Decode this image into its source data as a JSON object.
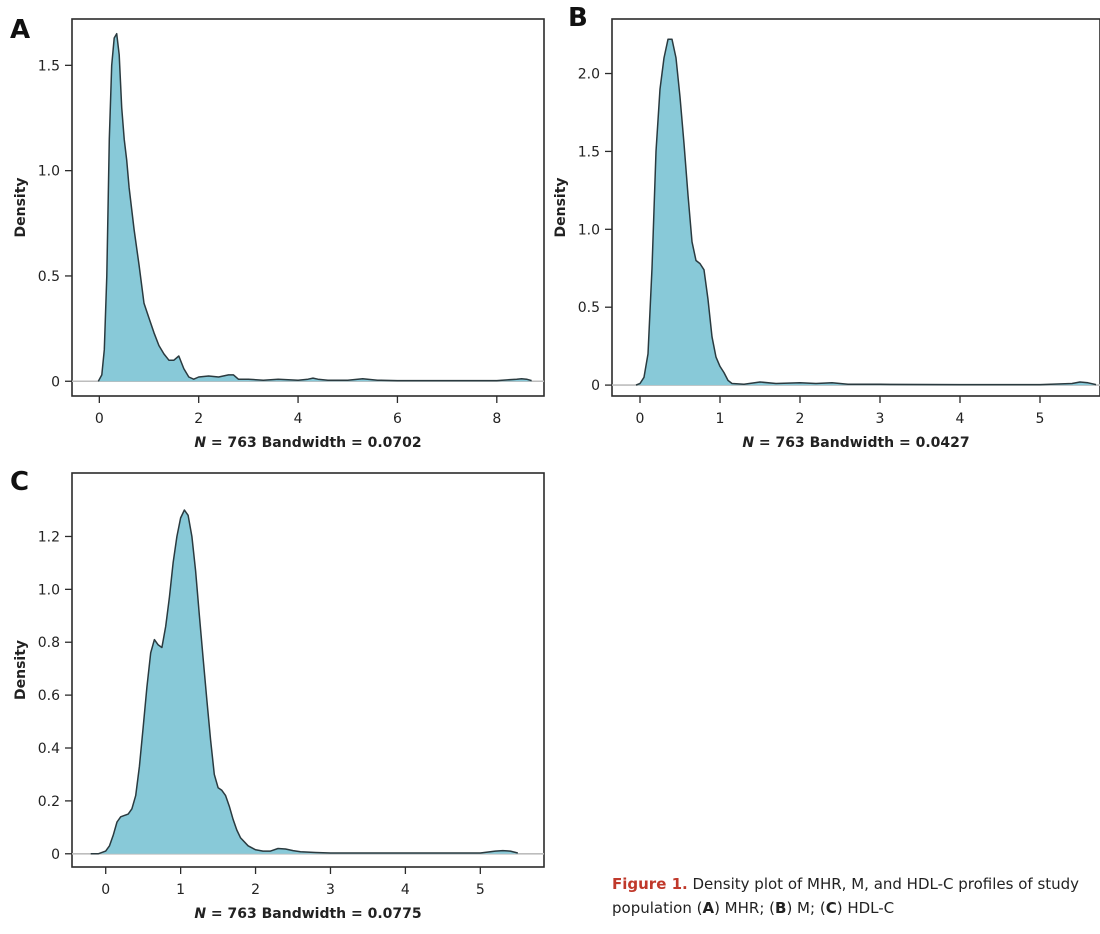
{
  "caption": {
    "figure_label": "Figure 1.",
    "text_parts": [
      " Density plot of MHR, M, and HDL-C profiles of study population (",
      "A",
      ") MHR; (",
      "B",
      ") M; (",
      "C",
      ") HDL-C"
    ]
  },
  "chart_data": [
    {
      "panel": "A",
      "type": "area",
      "xlabel_n": "N",
      "xlabel_rest": " = 763 Bandwidth = 0.0702",
      "ylabel": "Density",
      "xlim": [
        -0.55,
        8.95
      ],
      "ylim": [
        -0.07,
        1.72
      ],
      "xticks": [
        0,
        2,
        4,
        6,
        8
      ],
      "yticks": [
        0,
        0.5,
        1.0,
        1.5
      ],
      "ytick_labels": [
        "0",
        "0.5",
        "1.0",
        "1.5"
      ],
      "grid": false,
      "fill_color": "#88c9d8",
      "line_color": "#2a3a3f",
      "x": [
        -0.02,
        0.05,
        0.1,
        0.15,
        0.2,
        0.25,
        0.3,
        0.35,
        0.4,
        0.45,
        0.5,
        0.55,
        0.6,
        0.7,
        0.8,
        0.9,
        1.0,
        1.1,
        1.2,
        1.3,
        1.4,
        1.5,
        1.6,
        1.7,
        1.8,
        1.9,
        2.0,
        2.2,
        2.4,
        2.6,
        2.7,
        2.8,
        3.0,
        3.3,
        3.6,
        4.0,
        4.2,
        4.3,
        4.4,
        4.6,
        5.0,
        5.2,
        5.3,
        5.4,
        5.6,
        6.0,
        7.0,
        8.0,
        8.4,
        8.5,
        8.6,
        8.7
      ],
      "y": [
        0,
        0.03,
        0.15,
        0.5,
        1.15,
        1.5,
        1.63,
        1.65,
        1.55,
        1.3,
        1.15,
        1.05,
        0.92,
        0.72,
        0.55,
        0.37,
        0.3,
        0.23,
        0.17,
        0.13,
        0.1,
        0.1,
        0.12,
        0.06,
        0.02,
        0.01,
        0.02,
        0.025,
        0.02,
        0.03,
        0.03,
        0.01,
        0.01,
        0.005,
        0.01,
        0.005,
        0.01,
        0.015,
        0.01,
        0.005,
        0.005,
        0.01,
        0.012,
        0.01,
        0.005,
        0.003,
        0.003,
        0.003,
        0.01,
        0.012,
        0.01,
        0.003
      ]
    },
    {
      "panel": "B",
      "type": "area",
      "xlabel_n": "N",
      "xlabel_rest": " = 763 Bandwidth = 0.0427",
      "ylabel": "Density",
      "xlim": [
        -0.35,
        5.75
      ],
      "ylim": [
        -0.07,
        2.35
      ],
      "xticks": [
        0,
        1,
        2,
        3,
        4,
        5
      ],
      "yticks": [
        0,
        0.5,
        1.0,
        1.5,
        2.0
      ],
      "ytick_labels": [
        "0",
        "0.5",
        "1.0",
        "1.5",
        "2.0"
      ],
      "grid": false,
      "fill_color": "#88c9d8",
      "line_color": "#2a3a3f",
      "x": [
        -0.05,
        0.0,
        0.05,
        0.1,
        0.15,
        0.2,
        0.25,
        0.3,
        0.35,
        0.4,
        0.45,
        0.5,
        0.55,
        0.6,
        0.65,
        0.7,
        0.75,
        0.8,
        0.85,
        0.9,
        0.95,
        1.0,
        1.05,
        1.1,
        1.15,
        1.3,
        1.5,
        1.7,
        2.0,
        2.2,
        2.4,
        2.6,
        3.0,
        4.0,
        5.0,
        5.4,
        5.5,
        5.6,
        5.7
      ],
      "y": [
        0,
        0.01,
        0.05,
        0.2,
        0.75,
        1.5,
        1.9,
        2.1,
        2.22,
        2.22,
        2.1,
        1.85,
        1.55,
        1.22,
        0.92,
        0.8,
        0.78,
        0.74,
        0.55,
        0.31,
        0.18,
        0.12,
        0.08,
        0.03,
        0.01,
        0.005,
        0.02,
        0.01,
        0.015,
        0.01,
        0.015,
        0.005,
        0.005,
        0.003,
        0.003,
        0.01,
        0.02,
        0.015,
        0.003
      ]
    },
    {
      "panel": "C",
      "type": "area",
      "xlabel_n": "N",
      "xlabel_rest": " = 763 Bandwidth = 0.0775",
      "ylabel": "Density",
      "xlim": [
        -0.45,
        5.85
      ],
      "ylim": [
        -0.05,
        1.44
      ],
      "xticks": [
        0,
        1,
        2,
        3,
        4,
        5
      ],
      "yticks": [
        0,
        0.2,
        0.4,
        0.6,
        0.8,
        1.0,
        1.2
      ],
      "ytick_labels": [
        "0",
        "0.2",
        "0.4",
        "0.6",
        "0.8",
        "1.0",
        "1.2"
      ],
      "grid": false,
      "fill_color": "#88c9d8",
      "line_color": "#2a3a3f",
      "x": [
        -0.2,
        -0.1,
        0.0,
        0.05,
        0.1,
        0.15,
        0.2,
        0.25,
        0.3,
        0.35,
        0.4,
        0.45,
        0.5,
        0.55,
        0.6,
        0.65,
        0.7,
        0.75,
        0.8,
        0.85,
        0.9,
        0.95,
        1.0,
        1.05,
        1.1,
        1.15,
        1.2,
        1.25,
        1.3,
        1.35,
        1.4,
        1.45,
        1.5,
        1.55,
        1.6,
        1.65,
        1.7,
        1.75,
        1.8,
        1.9,
        2.0,
        2.1,
        2.2,
        2.3,
        2.4,
        2.5,
        2.6,
        2.8,
        3.0,
        4.0,
        5.0,
        5.2,
        5.3,
        5.4,
        5.5
      ],
      "y": [
        0,
        0.0,
        0.01,
        0.03,
        0.07,
        0.12,
        0.14,
        0.145,
        0.15,
        0.17,
        0.22,
        0.33,
        0.48,
        0.63,
        0.76,
        0.81,
        0.79,
        0.78,
        0.86,
        0.97,
        1.1,
        1.2,
        1.27,
        1.3,
        1.28,
        1.2,
        1.07,
        0.9,
        0.74,
        0.58,
        0.43,
        0.3,
        0.25,
        0.24,
        0.22,
        0.18,
        0.13,
        0.09,
        0.06,
        0.03,
        0.015,
        0.01,
        0.01,
        0.02,
        0.018,
        0.012,
        0.008,
        0.005,
        0.003,
        0.003,
        0.003,
        0.01,
        0.012,
        0.01,
        0.003
      ]
    }
  ]
}
